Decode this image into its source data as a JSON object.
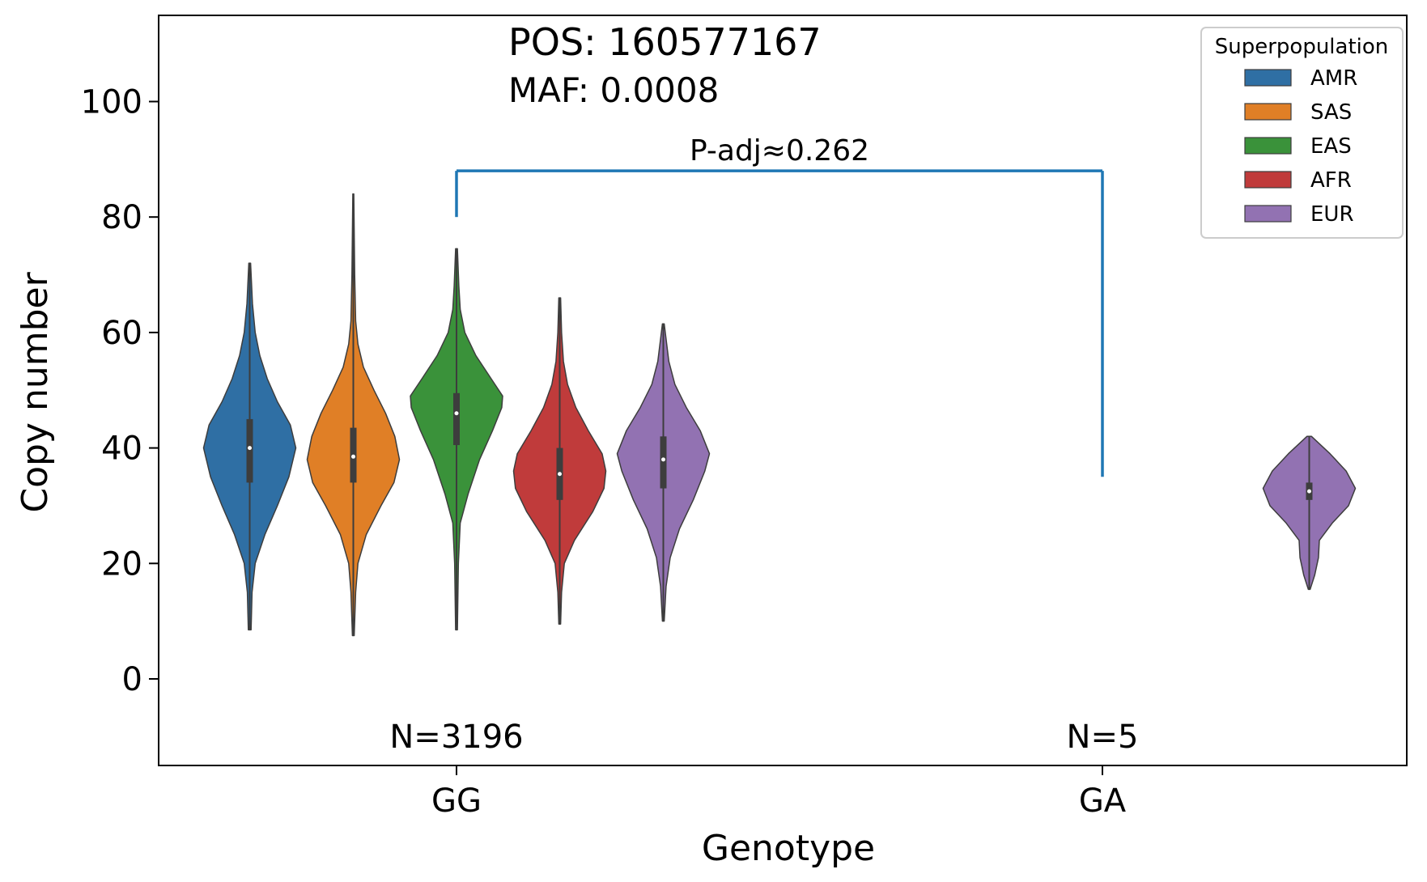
{
  "chart_data": {
    "type": "violin",
    "xlabel": "Genotype",
    "ylabel": "Copy number",
    "categories": [
      "GG",
      "GA"
    ],
    "ylim": [
      -15,
      115
    ],
    "yticks": [
      0,
      20,
      40,
      60,
      80,
      100
    ],
    "annotations": {
      "pos": "POS: 160577167",
      "maf": "MAF: 0.0008",
      "pvalue": "P-adj≈0.262",
      "n_labels": [
        "N=3196",
        "N=5"
      ]
    },
    "legend": {
      "title": "Superpopulation",
      "position": "top-right",
      "entries": [
        "AMR",
        "SAS",
        "EAS",
        "AFR",
        "EUR"
      ]
    },
    "colors": {
      "AMR": "#2f6fa4",
      "SAS": "#e07f26",
      "EAS": "#3a923a",
      "AFR": "#c03b3b",
      "EUR": "#9272b2",
      "bracket": "#1f77b4"
    },
    "series": [
      {
        "name": "AMR",
        "genotype": "GG",
        "min": 8.5,
        "q1": 34,
        "median": 40,
        "q3": 45,
        "max": 72,
        "density": [
          [
            8.5,
            0.03
          ],
          [
            15,
            0.05
          ],
          [
            20,
            0.12
          ],
          [
            25,
            0.33
          ],
          [
            30,
            0.6
          ],
          [
            35,
            0.85
          ],
          [
            40,
            1.0
          ],
          [
            44,
            0.88
          ],
          [
            48,
            0.6
          ],
          [
            52,
            0.38
          ],
          [
            56,
            0.22
          ],
          [
            60,
            0.12
          ],
          [
            65,
            0.06
          ],
          [
            72,
            0.02
          ]
        ]
      },
      {
        "name": "SAS",
        "genotype": "GG",
        "min": 7.5,
        "q1": 34,
        "median": 38.5,
        "q3": 43.5,
        "max": 84,
        "density": [
          [
            7.5,
            0.02
          ],
          [
            15,
            0.05
          ],
          [
            20,
            0.1
          ],
          [
            25,
            0.28
          ],
          [
            30,
            0.6
          ],
          [
            34,
            0.88
          ],
          [
            38,
            1.0
          ],
          [
            42,
            0.9
          ],
          [
            46,
            0.7
          ],
          [
            50,
            0.45
          ],
          [
            54,
            0.22
          ],
          [
            58,
            0.1
          ],
          [
            62,
            0.05
          ],
          [
            70,
            0.03
          ],
          [
            84,
            0.01
          ]
        ]
      },
      {
        "name": "EAS",
        "genotype": "GG",
        "min": 8.5,
        "q1": 40.5,
        "median": 46,
        "q3": 49.5,
        "max": 74.5,
        "density": [
          [
            8.5,
            0.02
          ],
          [
            20,
            0.04
          ],
          [
            27,
            0.08
          ],
          [
            32,
            0.25
          ],
          [
            38,
            0.5
          ],
          [
            43,
            0.78
          ],
          [
            47,
            0.98
          ],
          [
            49,
            1.0
          ],
          [
            52,
            0.75
          ],
          [
            56,
            0.42
          ],
          [
            60,
            0.18
          ],
          [
            64,
            0.08
          ],
          [
            68,
            0.05
          ],
          [
            74.5,
            0.02
          ]
        ]
      },
      {
        "name": "AFR",
        "genotype": "GG",
        "min": 9.5,
        "q1": 31,
        "median": 35.5,
        "q3": 40,
        "max": 66,
        "density": [
          [
            9.5,
            0.02
          ],
          [
            15,
            0.04
          ],
          [
            20,
            0.1
          ],
          [
            24,
            0.32
          ],
          [
            29,
            0.72
          ],
          [
            33,
            0.96
          ],
          [
            36,
            1.0
          ],
          [
            39,
            0.92
          ],
          [
            43,
            0.62
          ],
          [
            47,
            0.35
          ],
          [
            51,
            0.17
          ],
          [
            55,
            0.08
          ],
          [
            60,
            0.04
          ],
          [
            66,
            0.02
          ]
        ]
      },
      {
        "name": "EUR",
        "genotype": "GG",
        "min": 10,
        "q1": 33,
        "median": 38,
        "q3": 42,
        "max": 61.5,
        "density": [
          [
            10,
            0.02
          ],
          [
            16,
            0.06
          ],
          [
            21,
            0.15
          ],
          [
            26,
            0.35
          ],
          [
            31,
            0.65
          ],
          [
            36,
            0.9
          ],
          [
            39,
            1.0
          ],
          [
            43,
            0.8
          ],
          [
            47,
            0.5
          ],
          [
            51,
            0.25
          ],
          [
            55,
            0.12
          ],
          [
            61.5,
            0.02
          ]
        ]
      },
      {
        "name": "EUR",
        "genotype": "GA",
        "min": 15.5,
        "q1": 31,
        "median": 32.5,
        "q3": 34,
        "max": 42,
        "density": [
          [
            15.5,
            0.02
          ],
          [
            18,
            0.12
          ],
          [
            21,
            0.2
          ],
          [
            24,
            0.22
          ],
          [
            27,
            0.5
          ],
          [
            30,
            0.85
          ],
          [
            33,
            1.0
          ],
          [
            36,
            0.8
          ],
          [
            39,
            0.45
          ],
          [
            42,
            0.05
          ]
        ]
      }
    ]
  }
}
